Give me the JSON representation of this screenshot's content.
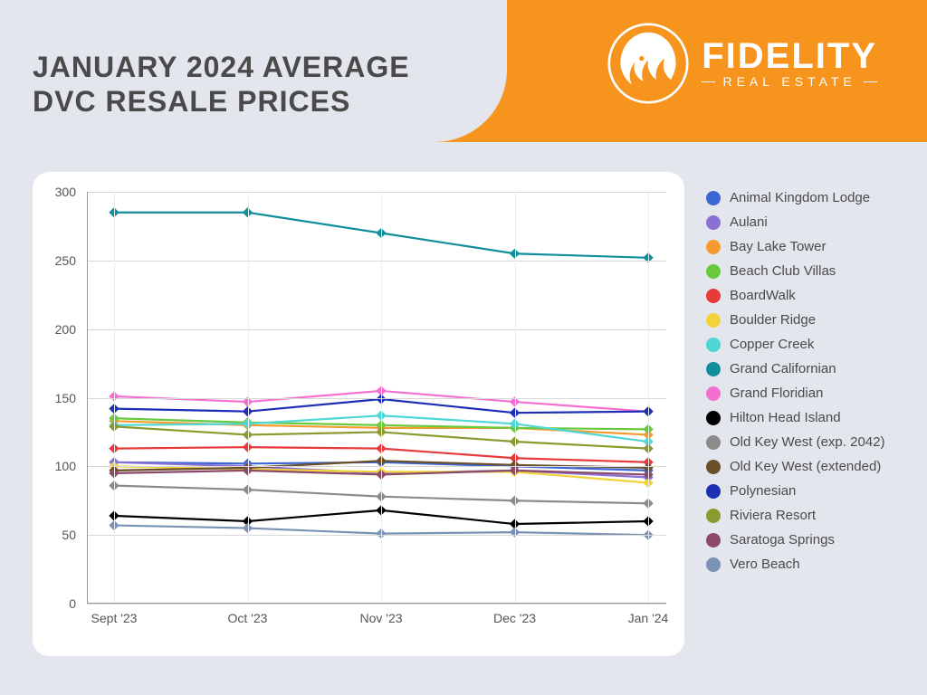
{
  "title_line1": "JANUARY 2024 AVERAGE",
  "title_line2": "DVC RESALE PRICES",
  "brand_name": "FIDELITY",
  "brand_sub": "REAL ESTATE",
  "colors": {
    "header_bg": "#f7941d",
    "page_bg": "#e4e6ee",
    "card_bg": "#ffffff",
    "title_color": "#4a4a4a",
    "axis_text": "#555555",
    "grid": "#d8d8d8",
    "grid_minor": "#ececec"
  },
  "chart": {
    "type": "line",
    "x_categories": [
      "Sept '23",
      "Oct '23",
      "Nov '23",
      "Dec '23",
      "Jan '24"
    ],
    "ylim": [
      0,
      300
    ],
    "ytick_step": 50,
    "marker": "diamond",
    "marker_size": 8,
    "line_width": 2.2,
    "label_fontsize": 14,
    "series": [
      {
        "name": "Animal Kingdom Lodge",
        "color": "#3a66d6",
        "values": [
          103,
          102,
          103,
          100,
          97
        ]
      },
      {
        "name": "Aulani",
        "color": "#8a6fd4",
        "values": [
          103,
          100,
          95,
          97,
          92
        ]
      },
      {
        "name": "Bay Lake Tower",
        "color": "#f59a2e",
        "values": [
          133,
          130,
          128,
          128,
          123
        ]
      },
      {
        "name": "Beach Club Villas",
        "color": "#69c93e",
        "values": [
          135,
          132,
          130,
          128,
          127
        ]
      },
      {
        "name": "BoardWalk",
        "color": "#e83a3a",
        "values": [
          113,
          114,
          113,
          106,
          103
        ]
      },
      {
        "name": "Boulder Ridge",
        "color": "#f2d43a",
        "values": [
          100,
          98,
          96,
          96,
          88
        ]
      },
      {
        "name": "Copper Creek",
        "color": "#4fd6d6",
        "values": [
          130,
          131,
          137,
          131,
          118
        ]
      },
      {
        "name": "Grand Californian",
        "color": "#118e9c",
        "values": [
          285,
          285,
          270,
          255,
          252
        ]
      },
      {
        "name": "Grand Floridian",
        "color": "#f46fd1",
        "values": [
          151,
          147,
          155,
          147,
          140
        ]
      },
      {
        "name": "Hilton Head Island",
        "color": "#000000",
        "values": [
          64,
          60,
          68,
          58,
          60
        ]
      },
      {
        "name": "Old Key West (exp. 2042)",
        "color": "#8b8b8b",
        "values": [
          86,
          83,
          78,
          75,
          73
        ]
      },
      {
        "name": "Old Key West (extended)",
        "color": "#6b4f2a",
        "values": [
          97,
          99,
          104,
          101,
          99
        ]
      },
      {
        "name": "Polynesian",
        "color": "#1c2fb5",
        "values": [
          142,
          140,
          149,
          139,
          140
        ]
      },
      {
        "name": "Riviera Resort",
        "color": "#8a9a2f",
        "values": [
          129,
          123,
          125,
          118,
          113
        ]
      },
      {
        "name": "Saratoga Springs",
        "color": "#8c4a6a",
        "values": [
          95,
          97,
          94,
          97,
          94
        ]
      },
      {
        "name": "Vero Beach",
        "color": "#7a92b5",
        "values": [
          57,
          55,
          51,
          52,
          50
        ]
      }
    ]
  }
}
